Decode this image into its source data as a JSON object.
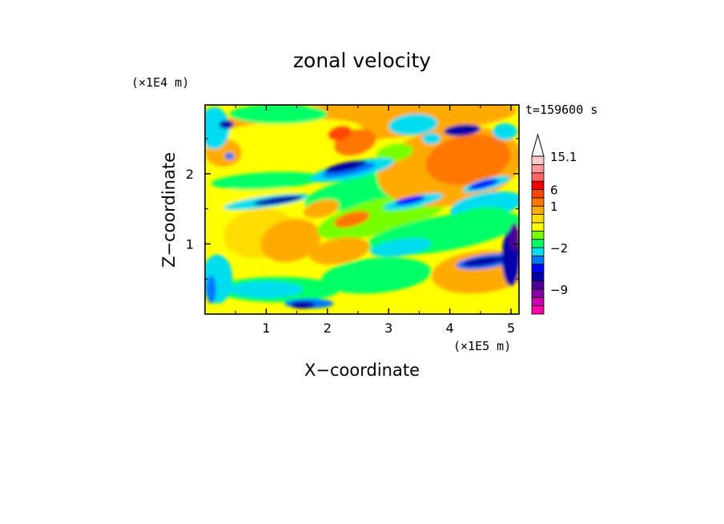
{
  "chart_data": {
    "type": "heatmap",
    "title": "zonal velocity",
    "xlabel": "X−coordinate",
    "ylabel": "Z−coordinate",
    "x_scale_label": "(×1E5 m)",
    "y_scale_label": "(×1E4 m)",
    "time_label": "t=159600 s",
    "xlim": [
      0,
      5.13
    ],
    "ylim": [
      0,
      2.98
    ],
    "x_ticks": [
      {
        "value": 1,
        "label": "1"
      },
      {
        "value": 2,
        "label": "2"
      },
      {
        "value": 3,
        "label": "3"
      },
      {
        "value": 4,
        "label": "4"
      },
      {
        "value": 5,
        "label": "5"
      }
    ],
    "y_ticks": [
      {
        "value": 1,
        "label": "1"
      },
      {
        "value": 2,
        "label": "2"
      }
    ],
    "colorbar": {
      "colors": [
        "#ff00aa",
        "#cc00b3",
        "#8800aa",
        "#4b0099",
        "#0000aa",
        "#0000ff",
        "#0077ff",
        "#00ddee",
        "#00ff66",
        "#77ff00",
        "#ffff00",
        "#ffdd00",
        "#ffaa00",
        "#ff7700",
        "#ff4400",
        "#ee0000",
        "#ff6666",
        "#ff9999",
        "#ffcccc"
      ],
      "levels": [
        -12.1,
        -10.6,
        -9,
        -7.5,
        -6,
        -4.5,
        -3,
        -2,
        -1,
        -0.5,
        0,
        0.5,
        1,
        3,
        6,
        9,
        10.6,
        12.1,
        15.1
      ],
      "tick_labels": [
        {
          "level": -9,
          "label": "−9"
        },
        {
          "level": -2,
          "label": "−2"
        },
        {
          "level": 1,
          "label": "1"
        },
        {
          "level": 6,
          "label": "6"
        },
        {
          "level": 15.1,
          "label": "15.1"
        }
      ],
      "extend": "max"
    },
    "grid": false,
    "legend": "right-colorbar"
  }
}
